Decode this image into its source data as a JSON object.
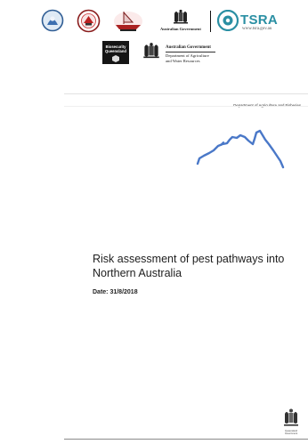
{
  "logos": {
    "agov_title": "Australian Government",
    "tsra": {
      "name": "TSRA",
      "url": "www.tsra.gov.au"
    },
    "biosecurity": {
      "line1": "Biosecurity",
      "line2": "Queensland"
    },
    "agov_dept": {
      "title": "Australian Government",
      "line1": "Department of Agriculture",
      "line2": "and Water Resources"
    }
  },
  "header": {
    "department": "Department of Agriculture and Fisheries"
  },
  "report": {
    "title_line1": "Risk assessment of pest pathways into",
    "title_line2": "Northern Australia",
    "date": "Date: 31/8/2018"
  },
  "footer": {
    "qld_line1": "Queensland",
    "qld_line2": "Government"
  },
  "colors": {
    "map_outline": "#4a78c8",
    "tsra": "#2a8fa3"
  }
}
